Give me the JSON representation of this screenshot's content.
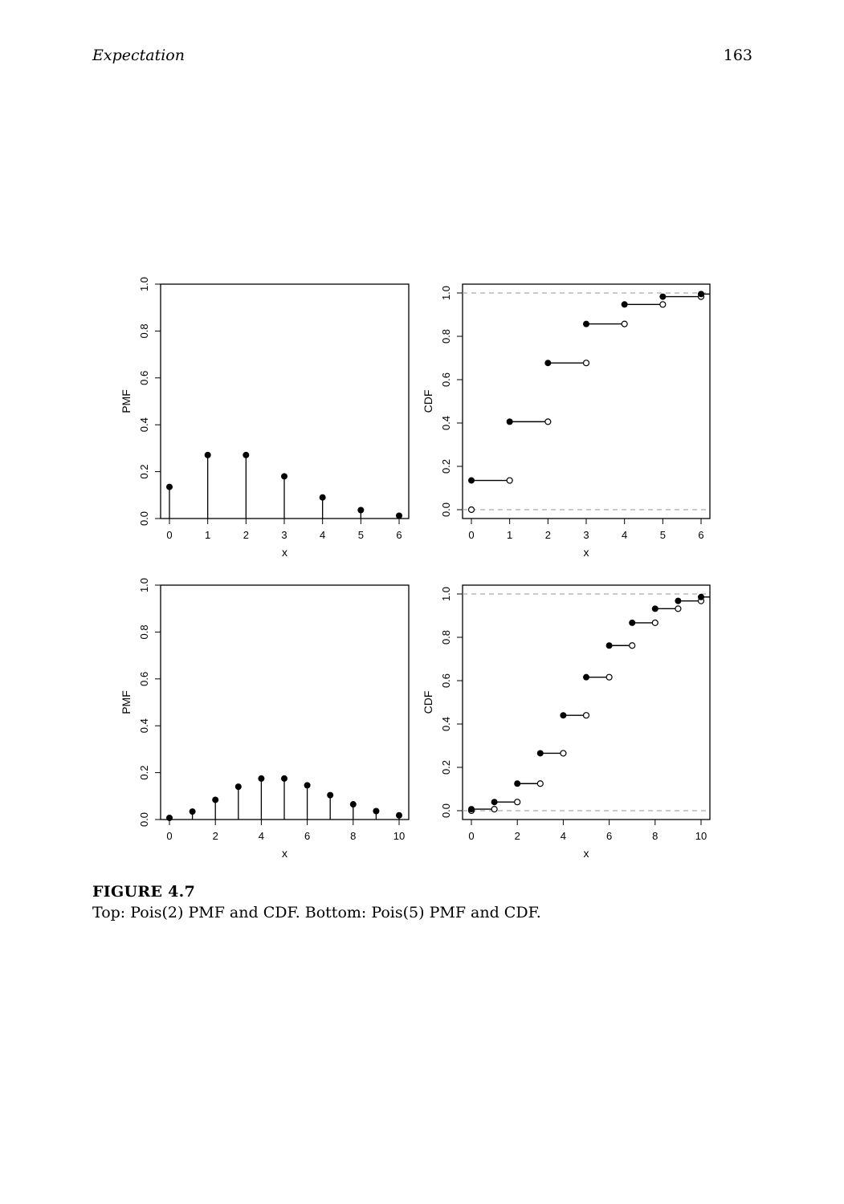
{
  "header": {
    "running_title": "Expectation",
    "page_number": "163"
  },
  "caption": {
    "label": "FIGURE 4.7",
    "text": "Top: Pois(2) PMF and CDF. Bottom: Pois(5) PMF and CDF."
  },
  "chart_data": [
    {
      "type": "stem",
      "panel": "top-left",
      "xlabel": "x",
      "ylabel": "PMF",
      "xlim": [
        0,
        6
      ],
      "ylim": [
        0,
        1
      ],
      "xticks": [
        0,
        1,
        2,
        3,
        4,
        5,
        6
      ],
      "yticks": [
        "0.0",
        "0.2",
        "0.4",
        "0.6",
        "0.8",
        "1.0"
      ],
      "x": [
        0,
        1,
        2,
        3,
        4,
        5,
        6
      ],
      "y": [
        0.135,
        0.271,
        0.271,
        0.18,
        0.09,
        0.036,
        0.012
      ]
    },
    {
      "type": "step",
      "panel": "top-right",
      "xlabel": "x",
      "ylabel": "CDF",
      "xlim": [
        0,
        6
      ],
      "ylim": [
        0,
        1
      ],
      "xticks": [
        0,
        1,
        2,
        3,
        4,
        5,
        6
      ],
      "yticks": [
        "0.0",
        "0.2",
        "0.4",
        "0.6",
        "0.8",
        "1.0"
      ],
      "x": [
        0,
        1,
        2,
        3,
        4,
        5,
        6
      ],
      "y": [
        0.135,
        0.406,
        0.677,
        0.857,
        0.947,
        0.983,
        0.995
      ],
      "reference_lines": [
        0,
        1
      ]
    },
    {
      "type": "stem",
      "panel": "bottom-left",
      "xlabel": "x",
      "ylabel": "PMF",
      "xlim": [
        0,
        10
      ],
      "ylim": [
        0,
        1
      ],
      "xticks": [
        0,
        2,
        4,
        6,
        8,
        10
      ],
      "yticks": [
        "0.0",
        "0.2",
        "0.4",
        "0.6",
        "0.8",
        "1.0"
      ],
      "x": [
        0,
        1,
        2,
        3,
        4,
        5,
        6,
        7,
        8,
        9,
        10
      ],
      "y": [
        0.007,
        0.034,
        0.084,
        0.14,
        0.175,
        0.175,
        0.146,
        0.104,
        0.065,
        0.036,
        0.018
      ]
    },
    {
      "type": "step",
      "panel": "bottom-right",
      "xlabel": "x",
      "ylabel": "CDF",
      "xlim": [
        0,
        10
      ],
      "ylim": [
        0,
        1
      ],
      "xticks": [
        0,
        2,
        4,
        6,
        8,
        10
      ],
      "yticks": [
        "0.0",
        "0.2",
        "0.4",
        "0.6",
        "0.8",
        "1.0"
      ],
      "x": [
        0,
        1,
        2,
        3,
        4,
        5,
        6,
        7,
        8,
        9,
        10
      ],
      "y": [
        0.007,
        0.04,
        0.125,
        0.265,
        0.44,
        0.616,
        0.762,
        0.867,
        0.932,
        0.968,
        0.986
      ],
      "reference_lines": [
        0,
        1
      ]
    }
  ]
}
